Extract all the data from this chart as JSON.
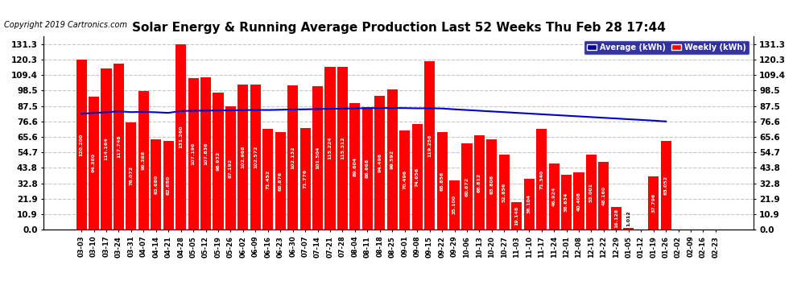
{
  "title": "Solar Energy & Running Average Production Last 52 Weeks Thu Feb 28 17:44",
  "copyright": "Copyright 2019 Cartronics.com",
  "bar_color": "#ff0000",
  "avg_line_color": "#0000cc",
  "background_color": "#ffffff",
  "grid_color": "#c0c0c0",
  "legend_avg_bg": "#00008b",
  "legend_weekly_bg": "#ff0000",
  "yticks": [
    0.0,
    10.9,
    21.9,
    32.8,
    43.8,
    54.7,
    65.6,
    76.6,
    87.5,
    98.5,
    109.4,
    120.3,
    131.3
  ],
  "ymax": 137.0,
  "categories": [
    "03-03",
    "03-10",
    "03-17",
    "03-24",
    "03-31",
    "04-07",
    "04-14",
    "04-21",
    "04-28",
    "05-05",
    "05-12",
    "05-19",
    "05-26",
    "06-02",
    "06-09",
    "06-16",
    "06-23",
    "06-30",
    "07-07",
    "07-14",
    "07-21",
    "07-28",
    "08-04",
    "08-11",
    "08-18",
    "08-25",
    "09-01",
    "09-08",
    "09-15",
    "09-22",
    "09-29",
    "10-06",
    "10-13",
    "10-20",
    "10-27",
    "11-03",
    "11-10",
    "11-17",
    "11-24",
    "12-01",
    "12-08",
    "12-15",
    "12-22",
    "12-29",
    "01-05",
    "01-12",
    "01-19",
    "01-26",
    "02-02",
    "02-09",
    "02-16",
    "02-23"
  ],
  "weekly_values": [
    120.2,
    94.38,
    114.164,
    117.748,
    76.072,
    98.388,
    63.68,
    62.68,
    131.26,
    107.196,
    107.836,
    96.932,
    87.192,
    102.968,
    102.572,
    71.452,
    68.876,
    102.132,
    71.776,
    101.504,
    115.224,
    115.312,
    89.604,
    86.668,
    94.496,
    99.592,
    70.496,
    74.656,
    119.256,
    68.856,
    35.1,
    60.872,
    66.812,
    63.808,
    52.856,
    19.148,
    36.104,
    71.34,
    46.924,
    38.634,
    40.408,
    53.001,
    48.16,
    16.128,
    1.012,
    0.0,
    37.796,
    63.052,
    0.0,
    0.0,
    0.0,
    0.0
  ],
  "avg_values": [
    82.0,
    82.7,
    83.1,
    83.8,
    83.2,
    83.4,
    83.1,
    82.7,
    84.0,
    84.2,
    84.3,
    84.4,
    84.5,
    84.6,
    84.8,
    84.7,
    84.9,
    85.1,
    85.2,
    85.4,
    85.6,
    85.7,
    85.9,
    86.0,
    86.1,
    86.1,
    86.1,
    85.9,
    86.0,
    85.8,
    85.2,
    84.7,
    84.2,
    83.7,
    83.2,
    82.7,
    82.2,
    81.7,
    81.2,
    80.7,
    80.2,
    79.7,
    79.2,
    78.7,
    78.2,
    77.7,
    77.2,
    76.6,
    0.0,
    0.0,
    0.0,
    0.0
  ],
  "avg_count": 48,
  "label_fontsize": 4.5,
  "tick_fontsize": 6.0,
  "ytick_fontsize": 7.5,
  "title_fontsize": 11,
  "copyright_fontsize": 7
}
